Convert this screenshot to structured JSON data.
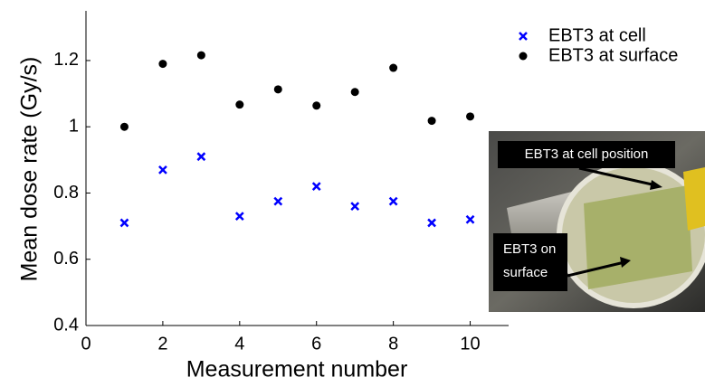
{
  "chart_data": {
    "type": "scatter",
    "xlabel": "Measurement number",
    "ylabel": "Mean dose rate (Gy/s)",
    "xlim": [
      0,
      11
    ],
    "ylim": [
      0.4,
      1.35
    ],
    "xticks": [
      0,
      2,
      4,
      6,
      8,
      10
    ],
    "yticks": [
      0.4,
      0.6,
      0.8,
      1,
      1.2
    ],
    "legend": "upper right",
    "series": [
      {
        "name": "EBT3 at cell",
        "color": "#0000ff",
        "marker": "x",
        "x": [
          1,
          2,
          3,
          4,
          5,
          6,
          7,
          8,
          9,
          10
        ],
        "values": [
          0.71,
          0.87,
          0.91,
          0.73,
          0.775,
          0.82,
          0.76,
          0.775,
          0.71,
          0.72
        ]
      },
      {
        "name": "EBT3 at surface",
        "color": "#000000",
        "marker": "o",
        "x": [
          1,
          2,
          3,
          4,
          5,
          6,
          7,
          8,
          9,
          10
        ],
        "values": [
          1.0,
          1.19,
          1.216,
          1.067,
          1.113,
          1.064,
          1.105,
          1.178,
          1.018,
          1.031
        ]
      }
    ],
    "inset_labels": [
      [
        "EBT3 at cell position"
      ],
      [
        "EBT3 on",
        "surface"
      ]
    ]
  }
}
